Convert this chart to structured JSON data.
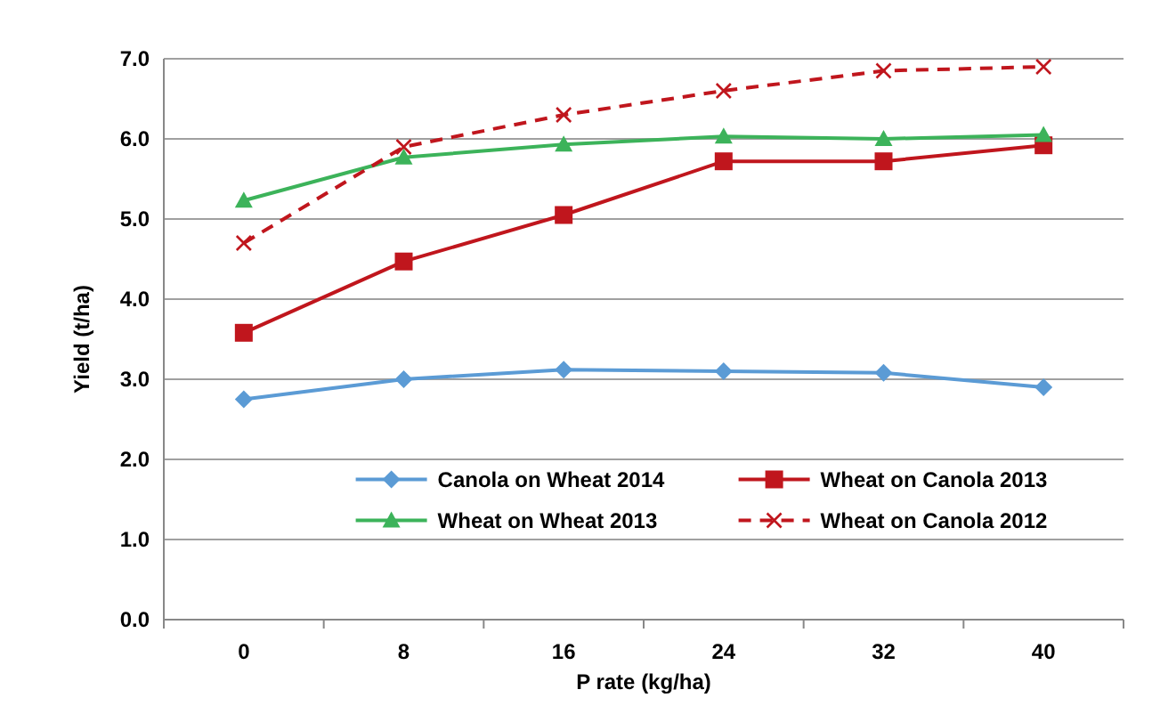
{
  "chart_data": {
    "type": "line",
    "xlabel": "P rate (kg/ha)",
    "ylabel": "Yield (t/ha)",
    "categories": [
      "0",
      "8",
      "16",
      "24",
      "32",
      "40"
    ],
    "series": [
      {
        "name": "Canola on Wheat 2014",
        "color": "#5b9bd5",
        "marker": "diamond",
        "line_style": "solid",
        "values": [
          2.75,
          3.0,
          3.12,
          3.1,
          3.08,
          2.9
        ]
      },
      {
        "name": "Wheat on Canola 2013",
        "color": "#c0161d",
        "marker": "square",
        "line_style": "solid",
        "values": [
          3.58,
          4.47,
          5.05,
          5.72,
          5.72,
          5.92
        ]
      },
      {
        "name": "Wheat on Wheat 2013",
        "color": "#3cb35a",
        "marker": "triangle",
        "line_style": "solid",
        "values": [
          5.23,
          5.77,
          5.93,
          6.03,
          6.0,
          6.05
        ]
      },
      {
        "name": "Wheat on Canola 2012",
        "color": "#c0161d",
        "marker": "cross",
        "line_style": "dashed",
        "values": [
          4.7,
          5.9,
          6.3,
          6.6,
          6.85,
          6.9
        ]
      }
    ],
    "ylim": [
      0,
      7
    ],
    "yticks": [
      {
        "value": 0,
        "label": "0.0"
      },
      {
        "value": 1,
        "label": "1.0"
      },
      {
        "value": 2,
        "label": "2.0"
      },
      {
        "value": 3,
        "label": "3.0"
      },
      {
        "value": 4,
        "label": "4.0"
      },
      {
        "value": 5,
        "label": "5.0"
      },
      {
        "value": 6,
        "label": "6.0"
      },
      {
        "value": 7,
        "label": "7.0"
      }
    ],
    "grid": "y",
    "legend": "bottom"
  }
}
